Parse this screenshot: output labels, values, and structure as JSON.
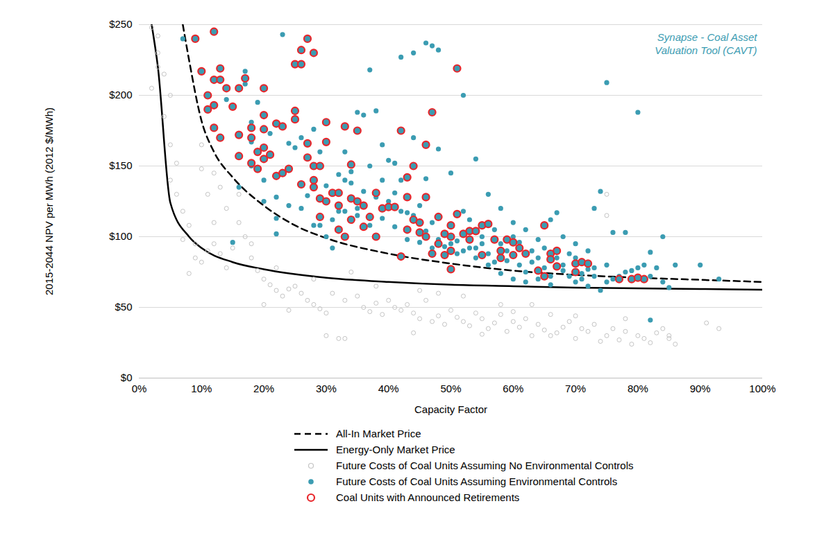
{
  "chart_data": {
    "type": "scatter",
    "x_label": "Capacity Factor",
    "y_label": "2015-2044 NPV per MWh (2012 $/MWh)",
    "annotations": [
      "Synapse - Coal Asset\nValuation Tool (CAVT)"
    ],
    "xlim": [
      0,
      100
    ],
    "xticks": [
      {
        "value": 0,
        "label": "0%"
      },
      {
        "value": 10,
        "label": "10%"
      },
      {
        "value": 20,
        "label": "20%"
      },
      {
        "value": 30,
        "label": "30%"
      },
      {
        "value": 40,
        "label": "40%"
      },
      {
        "value": 50,
        "label": "50%"
      },
      {
        "value": 60,
        "label": "60%"
      },
      {
        "value": 70,
        "label": "70%"
      },
      {
        "value": 80,
        "label": "80%"
      },
      {
        "value": 90,
        "label": "90%"
      },
      {
        "value": 100,
        "label": "100%"
      }
    ],
    "ylim": [
      0,
      250
    ],
    "yticks": [
      {
        "value": 0,
        "label": "$0"
      },
      {
        "value": 50,
        "label": "$50"
      },
      {
        "value": 100,
        "label": "$100"
      },
      {
        "value": 150,
        "label": "$150"
      },
      {
        "value": 200,
        "label": "$200"
      },
      {
        "value": 250,
        "label": "$250"
      }
    ],
    "grid": true,
    "legend": "bottom",
    "series": [
      {
        "name": "All-In Market Price",
        "type": "line",
        "line_style": "dashed",
        "color": "#000000",
        "x": [
          7,
          8,
          10,
          12,
          15,
          20,
          25,
          30,
          40,
          50,
          60,
          70,
          80,
          90,
          100
        ],
        "values": [
          250,
          225,
          182,
          160,
          142,
          122,
          108,
          99,
          88,
          81,
          76,
          73,
          71,
          69.5,
          68
        ]
      },
      {
        "name": "Energy-Only Market Price",
        "type": "line",
        "line_style": "solid",
        "color": "#000000",
        "x": [
          2,
          3,
          5,
          8,
          10,
          15,
          20,
          30,
          40,
          50,
          60,
          70,
          80,
          90,
          100
        ],
        "values": [
          250,
          220,
          124,
          100,
          92,
          82,
          77,
          71,
          68,
          66,
          65,
          64,
          63.5,
          63,
          62.5
        ]
      },
      {
        "name": "Future Costs of Coal Units Assuming No Environmental Controls",
        "type": "scatter",
        "marker": "circle_open",
        "color": "#c4c4c4",
        "x": [
          2,
          3,
          3,
          3,
          2,
          4,
          5,
          4,
          5,
          6,
          5,
          6,
          7,
          8,
          7,
          9,
          9,
          10,
          8,
          11,
          12,
          13,
          14,
          15,
          11,
          10,
          10,
          12,
          13,
          14,
          16,
          17,
          18,
          19,
          20,
          21,
          22,
          23,
          24,
          25,
          26,
          27,
          28,
          29,
          30,
          32,
          33,
          31,
          33,
          35,
          36,
          37,
          38,
          39,
          40,
          41,
          42,
          43,
          44,
          45,
          46,
          47,
          48,
          49,
          50,
          51,
          52,
          53,
          54,
          55,
          56,
          57,
          58,
          59,
          60,
          61,
          62,
          63,
          64,
          65,
          66,
          67,
          68,
          69,
          70,
          71,
          72,
          73,
          74,
          75,
          76,
          77,
          78,
          79,
          80,
          81,
          82,
          83,
          84,
          85,
          86,
          91,
          93,
          75,
          75,
          63,
          58,
          52,
          45,
          38,
          34,
          28,
          22,
          18,
          16,
          12,
          20,
          24,
          30,
          44,
          55,
          66,
          70,
          78,
          85,
          60,
          48
        ],
        "values": [
          248,
          242,
          230,
          220,
          205,
          215,
          200,
          185,
          165,
          152,
          140,
          130,
          118,
          108,
          98,
          95,
          85,
          82,
          74,
          90,
          95,
          88,
          78,
          92,
          130,
          148,
          165,
          145,
          135,
          120,
          110,
          100,
          85,
          76,
          70,
          66,
          62,
          58,
          63,
          65,
          60,
          55,
          52,
          49,
          30,
          28,
          28,
          60,
          55,
          58,
          50,
          47,
          53,
          45,
          55,
          50,
          48,
          52,
          46,
          42,
          55,
          40,
          44,
          38,
          48,
          43,
          40,
          37,
          46,
          42,
          35,
          39,
          45,
          33,
          40,
          36,
          42,
          30,
          38,
          34,
          45,
          32,
          36,
          40,
          28,
          35,
          33,
          38,
          26,
          30,
          35,
          27,
          33,
          24,
          30,
          28,
          25,
          32,
          35,
          28,
          24,
          39,
          35,
          130,
          115,
          52,
          52,
          58,
          62,
          65,
          75,
          70,
          78,
          95,
          130,
          110,
          52,
          48,
          46,
          32,
          31,
          30,
          44,
          42,
          30,
          47,
          60
        ]
      },
      {
        "name": "Future Costs of Coal Units Assuming Environmental Controls",
        "type": "scatter",
        "marker": "circle",
        "color": "#3b9cb2",
        "x": [
          7,
          17,
          17,
          23,
          42,
          44,
          46,
          47,
          48,
          52,
          75,
          80,
          14,
          18,
          19,
          18,
          21,
          22,
          22,
          24,
          25,
          26,
          27,
          28,
          29,
          30,
          31,
          32,
          33,
          34,
          35,
          36,
          37,
          38,
          39,
          40,
          41,
          42,
          44,
          46,
          48,
          50,
          52,
          54,
          56,
          58,
          60,
          62,
          64,
          66,
          67,
          68,
          70,
          72,
          73,
          74,
          76,
          78,
          82,
          84,
          86,
          90,
          93,
          82,
          60,
          62,
          64,
          66,
          68,
          70,
          72,
          74,
          76,
          78,
          80,
          82,
          84,
          85,
          58,
          56,
          54,
          52,
          50,
          48,
          46,
          44,
          42,
          40,
          38,
          36,
          34,
          32,
          30,
          28,
          26,
          24,
          22,
          20,
          20,
          18,
          16,
          15,
          29,
          31,
          33,
          35,
          37,
          39,
          41,
          43,
          45,
          47,
          49,
          51,
          53,
          55,
          57,
          59,
          61,
          63,
          65,
          67,
          69,
          71,
          73,
          75,
          77,
          79,
          81,
          83,
          57,
          59,
          61,
          63,
          65,
          67,
          69,
          71,
          73,
          75,
          62,
          64,
          66,
          68,
          70,
          72,
          54,
          56,
          58,
          60,
          45,
          47,
          49,
          51,
          53,
          55,
          43,
          41,
          39,
          37,
          35,
          33
        ],
        "values": [
          240,
          217,
          208,
          243,
          227,
          230,
          237,
          235,
          232,
          200,
          209,
          188,
          197,
          181,
          195,
          167,
          173,
          113,
          102,
          166,
          163,
          170,
          129,
          176,
          160,
          136,
          112,
          144,
          160,
          146,
          188,
          186,
          218,
          189,
          165,
          154,
          152,
          140,
          170,
          141,
          162,
          145,
          118,
          155,
          130,
          120,
          110,
          105,
          98,
          112,
          117,
          100,
          95,
          90,
          120,
          132,
          103,
          103,
          89,
          100,
          80,
          80,
          70,
          41,
          70,
          68,
          70,
          66,
          80,
          85,
          77,
          62,
          70,
          75,
          78,
          72,
          68,
          64,
          74,
          80,
          85,
          90,
          95,
          98,
          104,
          115,
          118,
          125,
          128,
          132,
          138,
          118,
          100,
          108,
          120,
          122,
          128,
          140,
          125,
          150,
          135,
          96,
          108,
          92,
          140,
          115,
          108,
          113,
          107,
          98,
          96,
          92,
          93,
          88,
          92,
          95,
          82,
          83,
          80,
          82,
          78,
          80,
          72,
          74,
          78,
          68,
          72,
          76,
          80,
          78,
          105,
          90,
          96,
          90,
          92,
          85,
          88,
          70,
          72,
          80,
          75,
          85,
          72,
          76,
          68,
          65,
          92,
          88,
          95,
          100,
          122,
          110,
          102,
          97,
          112,
          100,
          117,
          131,
          140,
          150,
          120,
          118
        ]
      },
      {
        "name": "Coal Units with Announced Retirements",
        "type": "scatter",
        "marker": "circle_open",
        "color": "#e8262b",
        "x": [
          9,
          12,
          10,
          13,
          11,
          12,
          11,
          12,
          13,
          14,
          15,
          12,
          13,
          16,
          17,
          16,
          16,
          18,
          18,
          18,
          19,
          19,
          20,
          20,
          20,
          20,
          20,
          21,
          22,
          22,
          23,
          23,
          24,
          25,
          25,
          25,
          26,
          26,
          27,
          28,
          26,
          27,
          27,
          28,
          28,
          28,
          29,
          29,
          29,
          30,
          30,
          30,
          31,
          32,
          32,
          33,
          32,
          33,
          34,
          34,
          34,
          35,
          35,
          36,
          36,
          37,
          38,
          38,
          39,
          40,
          41,
          42,
          42,
          43,
          43,
          44,
          44,
          43,
          45,
          45,
          46,
          46,
          47,
          46,
          47,
          48,
          49,
          48,
          49,
          50,
          50,
          51,
          50,
          50,
          52,
          53,
          53,
          54,
          55,
          55,
          56,
          57,
          58,
          58,
          59,
          60,
          60,
          61,
          62,
          65,
          64,
          65,
          66,
          67,
          66,
          67,
          70,
          70,
          71,
          72,
          77,
          79,
          81,
          80,
          51
        ],
        "values": [
          240,
          245,
          217,
          219,
          200,
          211,
          190,
          193,
          211,
          205,
          192,
          177,
          170,
          205,
          212,
          172,
          157,
          177,
          170,
          152,
          160,
          148,
          205,
          186,
          176,
          163,
          155,
          158,
          143,
          180,
          145,
          178,
          148,
          189,
          183,
          222,
          222,
          232,
          240,
          230,
          137,
          156,
          166,
          140,
          135,
          150,
          127,
          114,
          150,
          181,
          167,
          125,
          131,
          131,
          122,
          178,
          105,
          100,
          112,
          127,
          151,
          175,
          125,
          122,
          107,
          114,
          131,
          100,
          120,
          121,
          121,
          175,
          86,
          142,
          128,
          150,
          112,
          105,
          110,
          103,
          128,
          165,
          188,
          100,
          88,
          114,
          102,
          95,
          87,
          108,
          100,
          116,
          90,
          77,
          102,
          104,
          98,
          104,
          108,
          87,
          109,
          98,
          90,
          85,
          98,
          96,
          87,
          92,
          88,
          72,
          76,
          108,
          88,
          90,
          84,
          79,
          75,
          81,
          82,
          81,
          70,
          70,
          70,
          71,
          219
        ]
      }
    ]
  }
}
